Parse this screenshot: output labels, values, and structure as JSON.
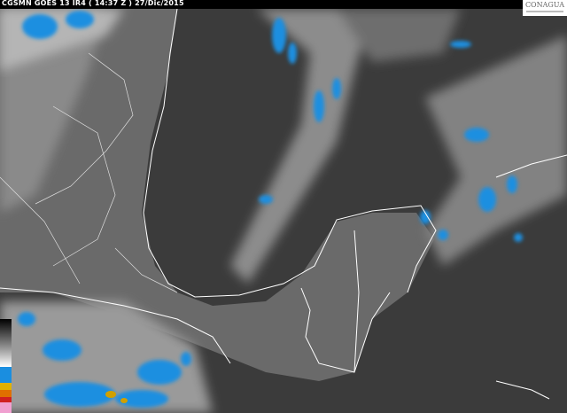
{
  "header": {
    "title": "CGSMN GOES 13 IR4 ( 14:37 Z ) 27/Dic/2015"
  },
  "logo": {
    "text": "CONAGUA"
  },
  "colors": {
    "cold_cloud": "#1e8fe0",
    "land_ocean": "#3a3a3a",
    "coast": "#ffffff"
  },
  "legend": {
    "colors": [
      "#000000",
      "#404040",
      "#808080",
      "#c0c0c0",
      "#ffffff",
      "#1a8ee0",
      "#0b6fc0",
      "#e0b000",
      "#e07000",
      "#d02020",
      "#f0a0d0"
    ]
  }
}
